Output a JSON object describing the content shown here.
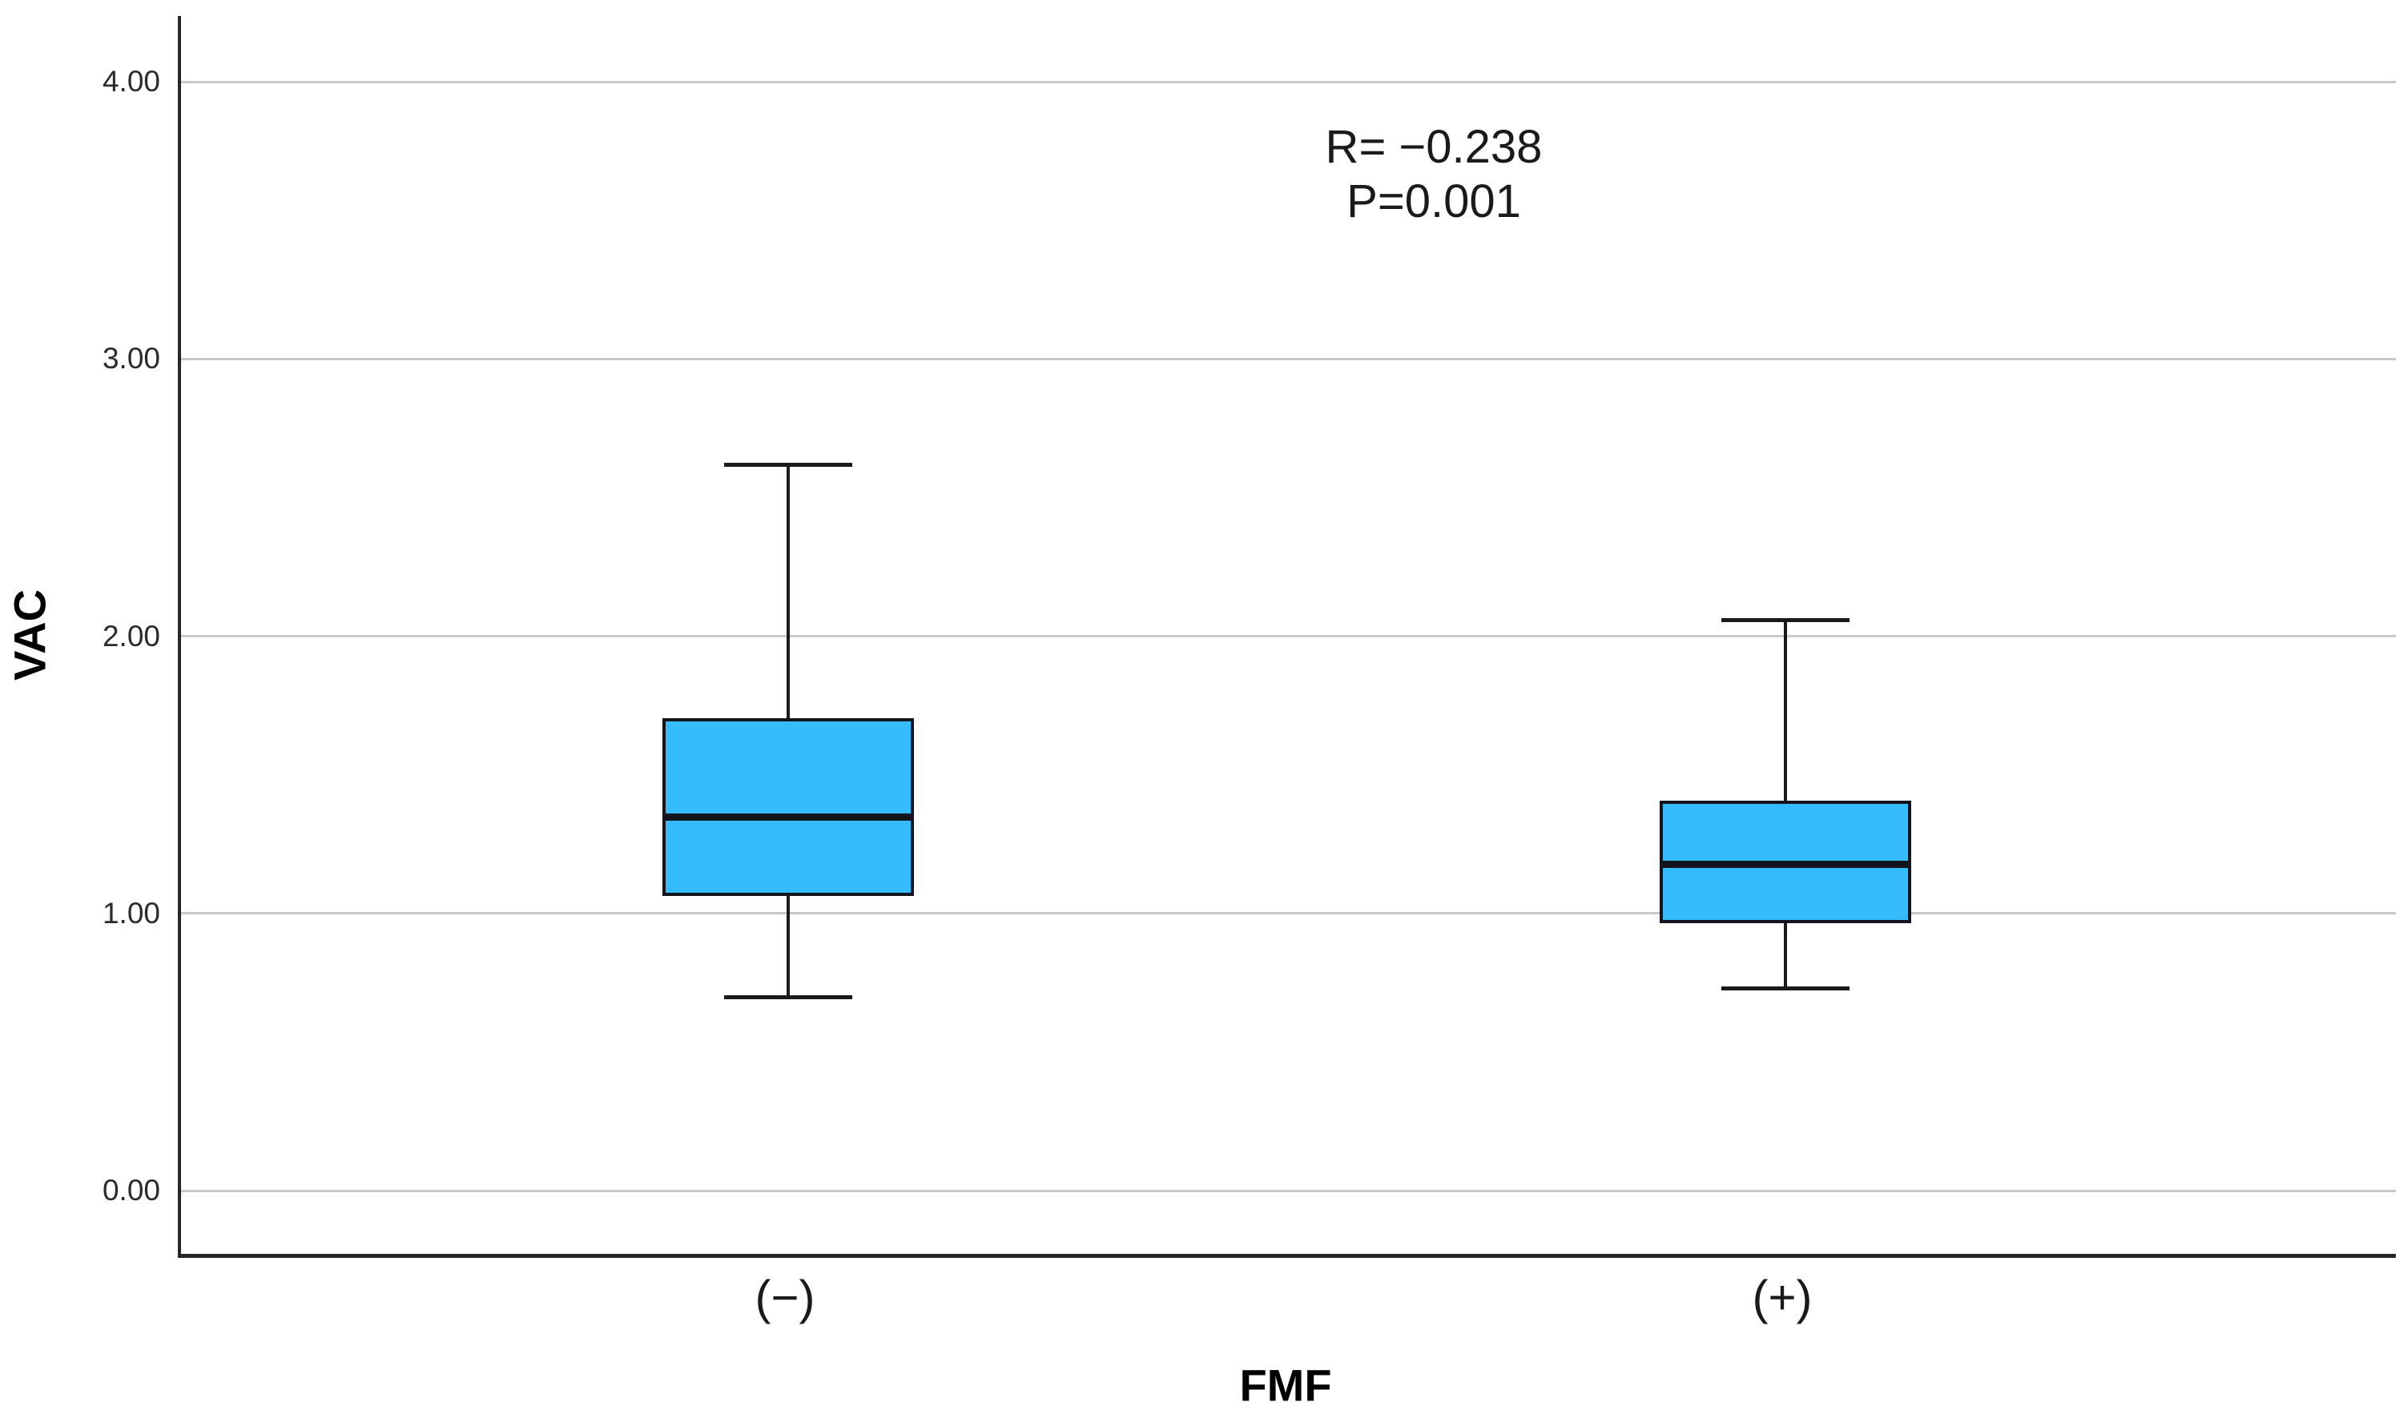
{
  "chart_data": {
    "type": "boxplot",
    "title": "",
    "xlabel": "FMF",
    "ylabel": "VAC",
    "categories": [
      "(−)",
      "(+)"
    ],
    "series": [
      {
        "category": "(−)",
        "whisker_low": 0.7,
        "q1": 1.07,
        "median": 1.35,
        "q3": 1.7,
        "whisker_high": 2.62
      },
      {
        "category": "(+)",
        "whisker_low": 0.73,
        "q1": 0.97,
        "median": 1.18,
        "q3": 1.4,
        "whisker_high": 2.06
      }
    ],
    "y_ticks": [
      {
        "value": 4,
        "label": "4.00"
      },
      {
        "value": 3,
        "label": "3.00"
      },
      {
        "value": 2,
        "label": "2.00"
      },
      {
        "value": 1,
        "label": "1.00"
      },
      {
        "value": 0,
        "label": "0.00"
      }
    ],
    "ylim": [
      -0.23,
      4.23
    ],
    "grid": true,
    "legend": "none",
    "annotation": {
      "line1": "R= −0.238",
      "line2": "P=0.001"
    },
    "colors": {
      "box_fill": "#34BCFC",
      "box_border": "#14141e",
      "median": "#14141e",
      "whisker": "#1a1a1a",
      "gridline": "#c8c8c8",
      "axis": "#262626",
      "text": "#000000"
    }
  }
}
